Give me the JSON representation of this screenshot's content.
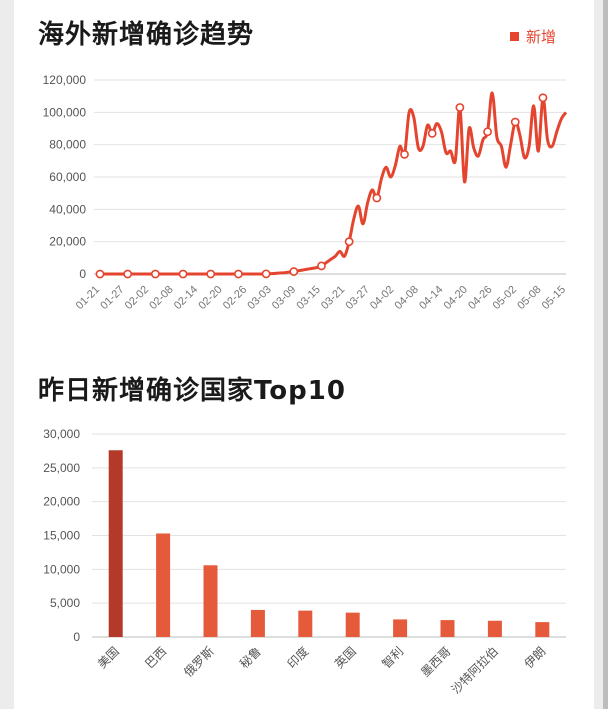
{
  "header": {
    "legend_label": "新增"
  },
  "colors": {
    "accent": "#e5442f",
    "bar_top": "#b33a2a",
    "bar": "#e65a3c",
    "grid": "#e2e2e2"
  },
  "chart_data": [
    {
      "type": "line",
      "title": "海外新增确诊趋势",
      "xlabel": "",
      "ylabel": "",
      "series": [
        {
          "name": "新增"
        }
      ],
      "ylim": [
        0,
        120000
      ],
      "yticks": [
        0,
        20000,
        40000,
        60000,
        80000,
        100000,
        120000
      ],
      "ytick_labels": [
        "0",
        "20,000",
        "40,000",
        "60,000",
        "80,000",
        "100,000",
        "120,000"
      ],
      "xtick_labels": [
        "01-21",
        "01-27",
        "02-02",
        "02-08",
        "02-14",
        "02-20",
        "02-26",
        "03-03",
        "03-09",
        "03-15",
        "03-21",
        "03-27",
        "04-02",
        "04-08",
        "04-14",
        "04-20",
        "04-26",
        "05-02",
        "05-08",
        "05-15"
      ],
      "legend": "top-right",
      "grid": true,
      "values": [
        0,
        0,
        0,
        0,
        0,
        0,
        0,
        0,
        0,
        0,
        0,
        0,
        0,
        0,
        0,
        0,
        0,
        0,
        0,
        0,
        0,
        0,
        0,
        0,
        0,
        0,
        0,
        0,
        0,
        0,
        0,
        0,
        0,
        0,
        0,
        0,
        100,
        200,
        400,
        600,
        800,
        1200,
        1500,
        2000,
        2500,
        3000,
        3500,
        4000,
        5000,
        7000,
        9000,
        11000,
        14000,
        11000,
        20000,
        34000,
        42000,
        31000,
        44000,
        52000,
        47000,
        59000,
        66000,
        60000,
        67000,
        79000,
        74000,
        100000,
        97000,
        78000,
        79000,
        92000,
        87000,
        93000,
        88000,
        75000,
        76000,
        70000,
        103000,
        57000,
        90000,
        78000,
        73000,
        83000,
        88000,
        112000,
        85000,
        79000,
        66000,
        80000,
        94000,
        86000,
        72000,
        79000,
        104000,
        76000,
        109000,
        83000,
        79000,
        88000,
        96000,
        100000
      ],
      "marked_points": [
        0,
        6,
        12,
        18,
        24,
        30,
        36,
        42,
        48,
        54,
        60,
        66,
        72,
        78,
        84,
        90,
        96,
        102,
        106,
        112,
        113
      ]
    },
    {
      "type": "bar",
      "title": "昨日新增确诊国家Top10",
      "categories": [
        "美国",
        "巴西",
        "俄罗斯",
        "秘鲁",
        "印度",
        "英国",
        "智利",
        "墨西哥",
        "沙特阿拉伯",
        "伊朗"
      ],
      "values": [
        27600,
        15300,
        10600,
        4000,
        3900,
        3600,
        2600,
        2500,
        2400,
        2200
      ],
      "ylim": [
        0,
        30000
      ],
      "yticks": [
        0,
        5000,
        10000,
        15000,
        20000,
        25000,
        30000
      ],
      "ytick_labels": [
        "0",
        "5,000",
        "10,000",
        "15,000",
        "20,000",
        "25,000",
        "30,000"
      ],
      "grid": true
    }
  ]
}
